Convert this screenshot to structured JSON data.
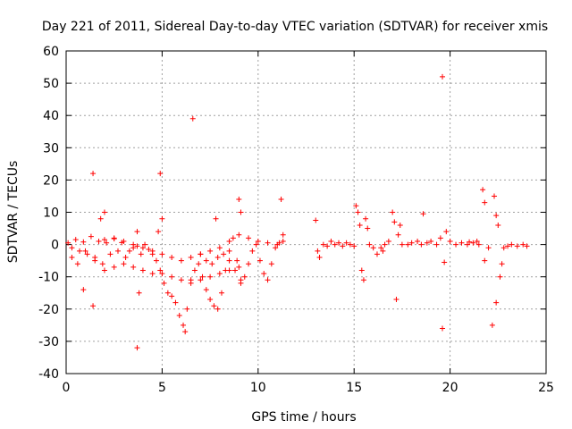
{
  "chart_data": {
    "type": "scatter",
    "title": "Day 221 of 2011, Sidereal Day-to-day VTEC variation (SDTVAR) for receiver xmis",
    "xlabel": "GPS time / hours",
    "ylabel": "SDTVAR / TECUs",
    "xlim": [
      0,
      25
    ],
    "ylim": [
      -40,
      60
    ],
    "xticks": [
      "0",
      "5",
      "10",
      "15",
      "20",
      "25"
    ],
    "yticks": [
      "-40",
      "-30",
      "-20",
      "-10",
      "0",
      "10",
      "20",
      "30",
      "40",
      "50",
      "60"
    ],
    "grid": true,
    "marker": "+",
    "color": "#ff0000",
    "series": [
      {
        "name": "SDTVAR",
        "points": [
          [
            0.1,
            0.5
          ],
          [
            0.3,
            -1
          ],
          [
            0.5,
            1.5
          ],
          [
            0.7,
            -2
          ],
          [
            0.9,
            0.8
          ],
          [
            1.1,
            -3
          ],
          [
            1.3,
            2.5
          ],
          [
            1.5,
            -4
          ],
          [
            1.7,
            1
          ],
          [
            1.9,
            -6
          ],
          [
            2.1,
            0.5
          ],
          [
            2.3,
            -3
          ],
          [
            2.5,
            1.8
          ],
          [
            2.7,
            -2
          ],
          [
            2.9,
            0.6
          ],
          [
            3.1,
            -4
          ],
          [
            3.3,
            -2
          ],
          [
            3.5,
            -1
          ],
          [
            3.7,
            -0.5
          ],
          [
            3.9,
            -3
          ],
          [
            4.1,
            0
          ],
          [
            4.3,
            -1.5
          ],
          [
            4.5,
            -3
          ],
          [
            4.7,
            -5
          ],
          [
            4.9,
            -8
          ],
          [
            5.1,
            -12
          ],
          [
            5.3,
            -15
          ],
          [
            5.5,
            -16
          ],
          [
            5.7,
            -18
          ],
          [
            5.9,
            -22
          ],
          [
            6.1,
            -25
          ],
          [
            6.2,
            -27
          ],
          [
            6.3,
            -20
          ],
          [
            6.5,
            -12
          ],
          [
            6.7,
            -8
          ],
          [
            6.9,
            -6
          ],
          [
            7.1,
            -10
          ],
          [
            7.3,
            -14
          ],
          [
            7.5,
            -17
          ],
          [
            7.7,
            -19
          ],
          [
            7.9,
            -20
          ],
          [
            8.1,
            -15
          ],
          [
            8.3,
            -8
          ],
          [
            8.5,
            -2
          ],
          [
            8.7,
            2
          ],
          [
            8.9,
            -5
          ],
          [
            9.1,
            -12
          ],
          [
            9.3,
            -10
          ],
          [
            9.5,
            -6
          ],
          [
            9.7,
            -2
          ],
          [
            9.9,
            0
          ],
          [
            10.1,
            -5
          ],
          [
            10.3,
            -9
          ],
          [
            10.5,
            -11
          ],
          [
            10.7,
            -6
          ],
          [
            10.9,
            -1
          ],
          [
            11.1,
            0.5
          ],
          [
            11.3,
            1
          ],
          [
            1.0,
            -2
          ],
          [
            1.5,
            -5
          ],
          [
            2.0,
            -8
          ],
          [
            2.5,
            -7
          ],
          [
            3.0,
            -6
          ],
          [
            3.5,
            -7
          ],
          [
            4.0,
            -8
          ],
          [
            4.5,
            -9
          ],
          [
            5.0,
            -9
          ],
          [
            5.5,
            -10
          ],
          [
            6.0,
            -11
          ],
          [
            6.5,
            -11
          ],
          [
            7.0,
            -11
          ],
          [
            7.5,
            -10
          ],
          [
            8.0,
            -9
          ],
          [
            8.5,
            -8
          ],
          [
            9.0,
            -7
          ],
          [
            2.0,
            1.5
          ],
          [
            2.5,
            2
          ],
          [
            3.0,
            1
          ],
          [
            3.5,
            0
          ],
          [
            4.0,
            -1
          ],
          [
            4.5,
            -2
          ],
          [
            5.0,
            -3
          ],
          [
            5.5,
            -4
          ],
          [
            6.0,
            -5
          ],
          [
            6.5,
            -4
          ],
          [
            7.0,
            -3
          ],
          [
            7.5,
            -2
          ],
          [
            8.0,
            -1
          ],
          [
            8.5,
            1
          ],
          [
            9.0,
            3
          ],
          [
            9.5,
            2
          ],
          [
            10.0,
            1
          ],
          [
            10.5,
            0.5
          ],
          [
            11.0,
            0
          ],
          [
            7.0,
            -3
          ],
          [
            7.3,
            -5
          ],
          [
            7.6,
            -6
          ],
          [
            7.9,
            -4
          ],
          [
            8.2,
            -3
          ],
          [
            8.5,
            -5
          ],
          [
            8.8,
            -8
          ],
          [
            9.1,
            -11
          ],
          [
            0.3,
            -4
          ],
          [
            0.6,
            -6
          ],
          [
            0.9,
            -14
          ],
          [
            1.4,
            -19
          ],
          [
            1.4,
            22
          ],
          [
            1.8,
            8
          ],
          [
            2.0,
            10
          ],
          [
            3.7,
            -32
          ],
          [
            3.8,
            -15
          ],
          [
            3.7,
            4
          ],
          [
            4.8,
            4
          ],
          [
            4.9,
            22
          ],
          [
            5.0,
            8
          ],
          [
            6.6,
            39
          ],
          [
            7.8,
            8
          ],
          [
            9.0,
            14
          ],
          [
            9.1,
            10
          ],
          [
            11.2,
            14
          ],
          [
            11.3,
            3
          ],
          [
            13.0,
            7.5
          ],
          [
            13.1,
            -2
          ],
          [
            13.2,
            -4
          ],
          [
            13.4,
            0
          ],
          [
            13.6,
            -0.5
          ],
          [
            13.8,
            1
          ],
          [
            14.0,
            0
          ],
          [
            14.2,
            0.5
          ],
          [
            14.4,
            -0.5
          ],
          [
            14.6,
            0.5
          ],
          [
            14.8,
            0
          ],
          [
            15.0,
            -0.5
          ],
          [
            15.1,
            12
          ],
          [
            15.2,
            10
          ],
          [
            15.3,
            6
          ],
          [
            15.4,
            -8
          ],
          [
            15.5,
            -11
          ],
          [
            15.6,
            8
          ],
          [
            15.7,
            5
          ],
          [
            15.8,
            0
          ],
          [
            16.0,
            -1
          ],
          [
            16.2,
            -3
          ],
          [
            16.4,
            -1
          ],
          [
            16.6,
            0
          ],
          [
            16.8,
            1
          ],
          [
            17.0,
            10
          ],
          [
            17.1,
            7
          ],
          [
            17.2,
            -17
          ],
          [
            17.3,
            3
          ],
          [
            17.4,
            6
          ],
          [
            17.5,
            0
          ],
          [
            17.8,
            0
          ],
          [
            18.0,
            0.5
          ],
          [
            18.3,
            1
          ],
          [
            18.5,
            0
          ],
          [
            18.8,
            0.5
          ],
          [
            19.0,
            1
          ],
          [
            19.3,
            0
          ],
          [
            19.5,
            2
          ],
          [
            19.6,
            52
          ],
          [
            19.6,
            -26
          ],
          [
            19.7,
            -5.5
          ],
          [
            19.8,
            4
          ],
          [
            20.0,
            1
          ],
          [
            20.3,
            0
          ],
          [
            20.6,
            0.5
          ],
          [
            20.9,
            0
          ],
          [
            21.2,
            0.5
          ],
          [
            21.5,
            0
          ],
          [
            21.7,
            17
          ],
          [
            21.8,
            13
          ],
          [
            21.8,
            -5
          ],
          [
            22.0,
            -1
          ],
          [
            22.2,
            -25
          ],
          [
            22.3,
            15
          ],
          [
            22.4,
            9
          ],
          [
            22.4,
            -18
          ],
          [
            22.5,
            6
          ],
          [
            22.6,
            -10
          ],
          [
            22.7,
            -6
          ],
          [
            22.8,
            -1
          ],
          [
            23.0,
            -0.5
          ],
          [
            23.2,
            0
          ],
          [
            23.5,
            -0.5
          ],
          [
            23.8,
            0
          ],
          [
            24.0,
            -0.5
          ],
          [
            18.6,
            9.5
          ],
          [
            21.4,
            1
          ],
          [
            21.0,
            0.8
          ],
          [
            16.5,
            -2
          ]
        ]
      }
    ]
  }
}
